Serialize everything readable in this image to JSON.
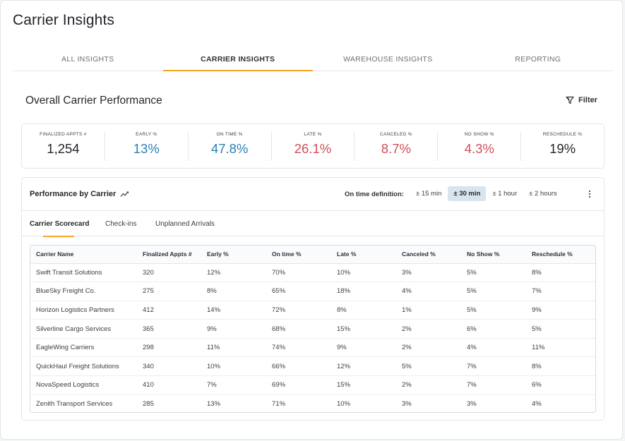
{
  "app": {
    "title": "Carrier Insights"
  },
  "tabs": [
    {
      "label": "ALL INSIGHTS",
      "active": false
    },
    {
      "label": "CARRIER INSIGHTS",
      "active": true
    },
    {
      "label": "WAREHOUSE INSIGHTS",
      "active": false
    },
    {
      "label": "REPORTING",
      "active": false
    }
  ],
  "overview": {
    "title": "Overall Carrier Performance",
    "filter_label": "Filter"
  },
  "kpis": [
    {
      "label": "FINALIZED APPTS #",
      "value": "1,254",
      "color": "#1f2328"
    },
    {
      "label": "EARLY %",
      "value": "13%",
      "color": "#2a7fb8"
    },
    {
      "label": "ON TIME %",
      "value": "47.8%",
      "color": "#2a7fb8"
    },
    {
      "label": "LATE %",
      "value": "26.1%",
      "color": "#d0505a"
    },
    {
      "label": "CANCELED %",
      "value": "8.7%",
      "color": "#d0505a"
    },
    {
      "label": "NO SHOW %",
      "value": "4.3%",
      "color": "#d0505a"
    },
    {
      "label": "RESCHEDULE %",
      "value": "19%",
      "color": "#1f2328"
    }
  ],
  "performance": {
    "title": "Performance by Carrier",
    "on_time_label": "On time definition:",
    "options": [
      {
        "label": "± 15 min",
        "active": false
      },
      {
        "label": "± 30 min",
        "active": true
      },
      {
        "label": "± 1 hour",
        "active": false
      },
      {
        "label": "± 2 hours",
        "active": false
      }
    ],
    "subtabs": [
      {
        "label": "Carrier Scorecard",
        "active": true
      },
      {
        "label": "Check-ins",
        "active": false
      },
      {
        "label": "Unplanned Arrivals",
        "active": false
      }
    ]
  },
  "table": {
    "columns": [
      "Carrier Name",
      "Finalized Appts #",
      "Early %",
      "On time %",
      "Late %",
      "Canceled %",
      "No Show %",
      "Reschedule %"
    ],
    "rows": [
      [
        "Swift Transit Solutions",
        "320",
        "12%",
        "70%",
        "10%",
        "3%",
        "5%",
        "8%"
      ],
      [
        "BlueSky Freight Co.",
        "275",
        "8%",
        "65%",
        "18%",
        "4%",
        "5%",
        "7%"
      ],
      [
        "Horizon Logistics Partners",
        "412",
        "14%",
        "72%",
        "8%",
        "1%",
        "5%",
        "9%"
      ],
      [
        "Silverline Cargo Services",
        "365",
        "9%",
        "68%",
        "15%",
        "2%",
        "6%",
        "5%"
      ],
      [
        "EagleWing Carriers",
        "298",
        "11%",
        "74%",
        "9%",
        "2%",
        "4%",
        "11%"
      ],
      [
        "QuickHaul Freight Solutions",
        "340",
        "10%",
        "66%",
        "12%",
        "5%",
        "7%",
        "8%"
      ],
      [
        "NovaSpeed Logistics",
        "410",
        "7%",
        "69%",
        "15%",
        "2%",
        "7%",
        "6%"
      ],
      [
        "Zenith Transport Services",
        "285",
        "13%",
        "71%",
        "10%",
        "3%",
        "3%",
        "4%"
      ]
    ]
  }
}
